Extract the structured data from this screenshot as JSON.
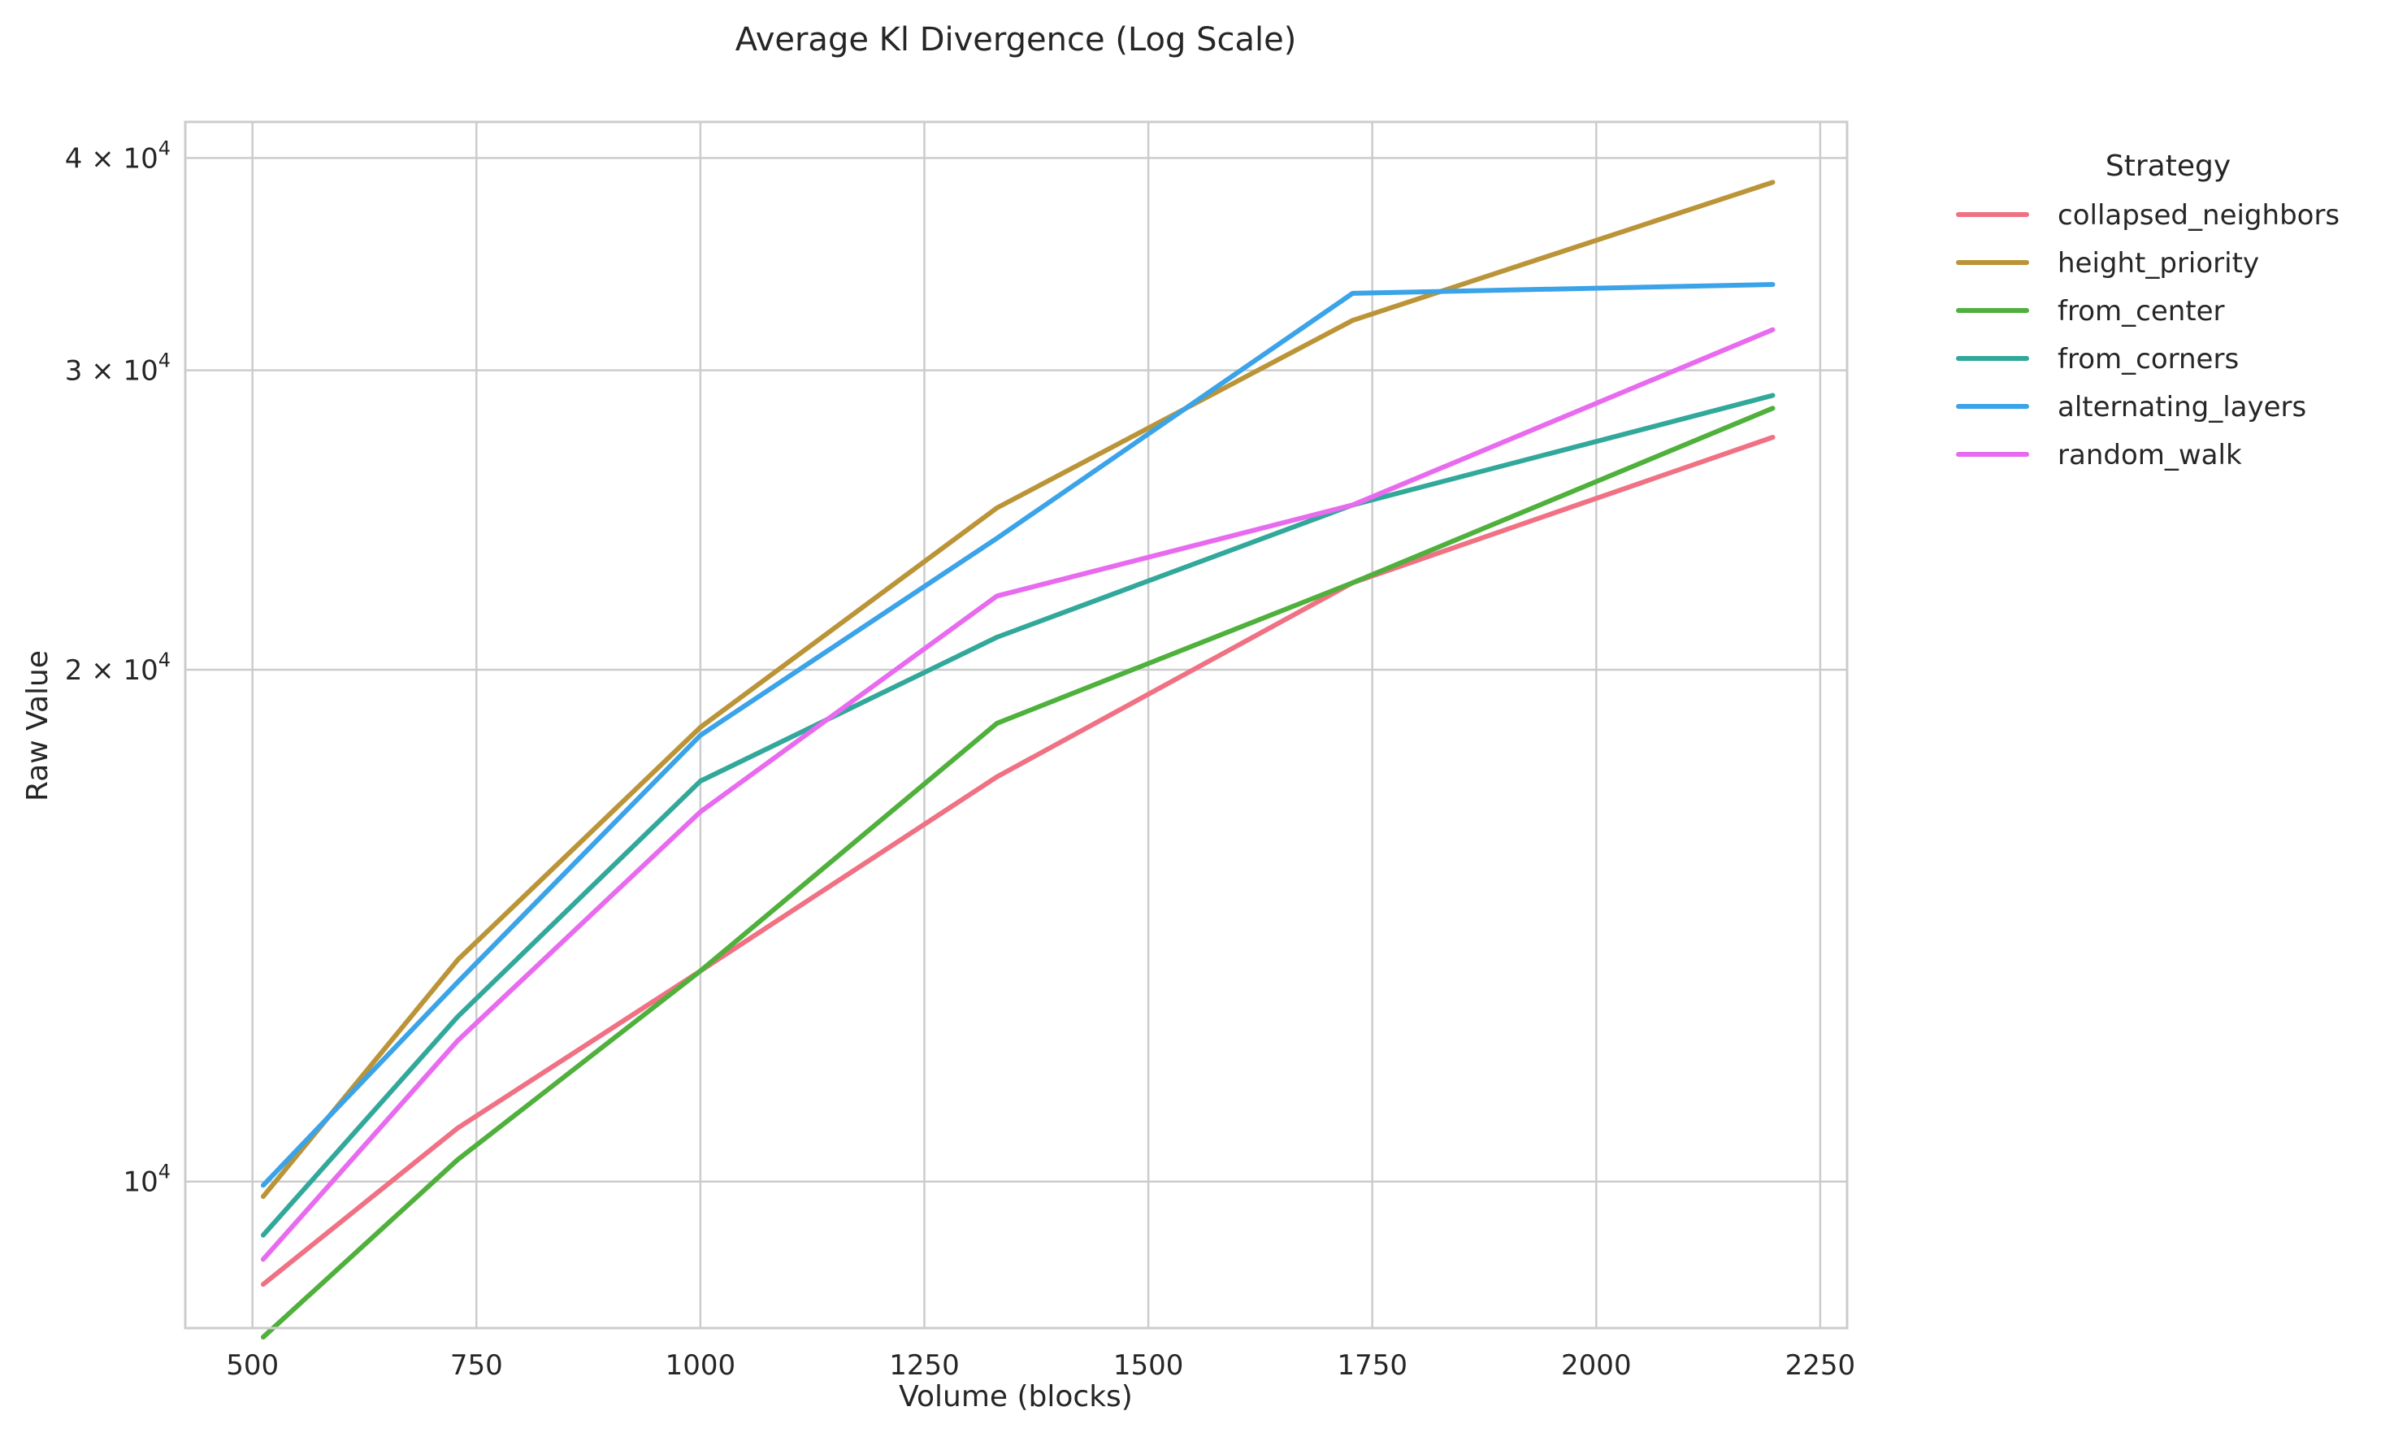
{
  "chart_data": {
    "type": "line",
    "title": "Average Kl Divergence (Log Scale)",
    "xlabel": "Volume (blocks)",
    "ylabel": "Raw Value",
    "xlim": [
      425,
      2280
    ],
    "ylim": [
      8200,
      42000
    ],
    "yscale": "log",
    "grid": true,
    "x_ticks": [
      500,
      750,
      1000,
      1250,
      1500,
      1750,
      2000,
      2250
    ],
    "y_ticks": [
      {
        "value": 10000,
        "base": "10",
        "exp": "4",
        "prefix": ""
      },
      {
        "value": 20000,
        "base": "10",
        "exp": "4",
        "prefix": "2 × "
      },
      {
        "value": 30000,
        "base": "10",
        "exp": "4",
        "prefix": "3 × "
      },
      {
        "value": 40000,
        "base": "10",
        "exp": "4",
        "prefix": "4 × "
      }
    ],
    "legend": {
      "title": "Strategy",
      "position": "outside-right"
    },
    "x": [
      512,
      729,
      1000,
      1331,
      1728,
      2197
    ],
    "series": [
      {
        "name": "collapsed_neighbors",
        "color": "#f07183",
        "values": [
          8700,
          10750,
          13300,
          17300,
          22500,
          27400
        ]
      },
      {
        "name": "height_priority",
        "color": "#bb9438",
        "values": [
          9800,
          13500,
          18500,
          24900,
          32100,
          38700
        ]
      },
      {
        "name": "from_center",
        "color": "#4fb03c",
        "values": [
          8100,
          10300,
          13300,
          18600,
          22500,
          28500
        ]
      },
      {
        "name": "from_corners",
        "color": "#32a89b",
        "values": [
          9300,
          12500,
          17200,
          20900,
          25000,
          29000
        ]
      },
      {
        "name": "alternating_layers",
        "color": "#3ba3e8",
        "values": [
          9950,
          13100,
          18300,
          23900,
          33300,
          33700
        ]
      },
      {
        "name": "random_walk",
        "color": "#e86bef",
        "values": [
          9000,
          12100,
          16500,
          22100,
          25000,
          31700
        ]
      }
    ]
  }
}
